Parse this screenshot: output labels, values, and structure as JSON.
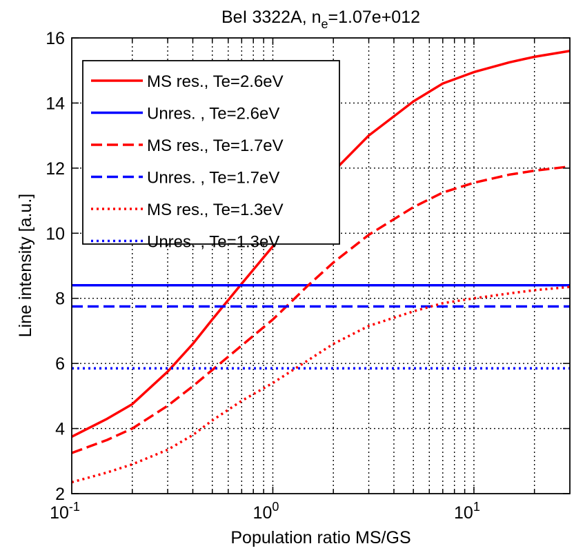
{
  "chart_data": {
    "type": "line",
    "title": "BeI 3322A, n_e=1.07e+012",
    "title_parts": {
      "main": "BeI 3322A, n",
      "subscript": "e",
      "rest": "=1.07e+012"
    },
    "xlabel": "Population ratio MS/GS",
    "ylabel": "Line intensity [a.u.]",
    "xscale": "log",
    "xlim": [
      0.1,
      30
    ],
    "ylim": [
      2,
      16
    ],
    "grid": true,
    "grid_style": "dotted",
    "legend_position": "top-left",
    "x_ticks": [
      {
        "value": 0.1,
        "base": "10",
        "exp": "-1"
      },
      {
        "value": 1,
        "base": "10",
        "exp": "0"
      },
      {
        "value": 10,
        "base": "10",
        "exp": "1"
      }
    ],
    "y_ticks": [
      2,
      4,
      6,
      8,
      10,
      12,
      14,
      16
    ],
    "x": [
      0.1,
      0.15,
      0.2,
      0.3,
      0.4,
      0.5,
      0.7,
      1,
      1.5,
      2,
      3,
      5,
      7,
      10,
      15,
      20,
      30
    ],
    "series": [
      {
        "name": "MS res., Te=2.6eV",
        "color": "#ff0000",
        "style": "solid",
        "values": [
          3.75,
          4.3,
          4.75,
          5.75,
          6.6,
          7.35,
          8.45,
          9.6,
          11.0,
          11.9,
          13.0,
          14.05,
          14.6,
          14.95,
          15.25,
          15.42,
          15.6
        ]
      },
      {
        "name": "Unres. , Te=2.6eV",
        "color": "#0000ff",
        "style": "solid",
        "values": [
          8.4,
          8.4,
          8.4,
          8.4,
          8.4,
          8.4,
          8.4,
          8.4,
          8.4,
          8.4,
          8.4,
          8.4,
          8.4,
          8.4,
          8.4,
          8.4,
          8.4
        ]
      },
      {
        "name": "MS res., Te=1.7eV",
        "color": "#ff0000",
        "style": "dashed",
        "values": [
          3.25,
          3.65,
          4.0,
          4.7,
          5.3,
          5.8,
          6.55,
          7.35,
          8.4,
          9.1,
          9.95,
          10.8,
          11.25,
          11.55,
          11.8,
          11.92,
          12.05
        ]
      },
      {
        "name": "Unres. , Te=1.7eV",
        "color": "#0000ff",
        "style": "dashed",
        "values": [
          7.75,
          7.75,
          7.75,
          7.75,
          7.75,
          7.75,
          7.75,
          7.75,
          7.75,
          7.75,
          7.75,
          7.75,
          7.75,
          7.75,
          7.75,
          7.75,
          7.75
        ]
      },
      {
        "name": "MS res., Te=1.3eV",
        "color": "#ff0000",
        "style": "dotted",
        "values": [
          2.35,
          2.65,
          2.9,
          3.35,
          3.8,
          4.25,
          4.85,
          5.4,
          6.1,
          6.6,
          7.15,
          7.6,
          7.85,
          8.0,
          8.15,
          8.25,
          8.35
        ]
      },
      {
        "name": "Unres. , Te=1.3eV",
        "color": "#0000ff",
        "style": "dotted",
        "values": [
          5.85,
          5.85,
          5.85,
          5.85,
          5.85,
          5.85,
          5.85,
          5.85,
          5.85,
          5.85,
          5.85,
          5.85,
          5.85,
          5.85,
          5.85,
          5.85,
          5.85
        ]
      }
    ]
  }
}
